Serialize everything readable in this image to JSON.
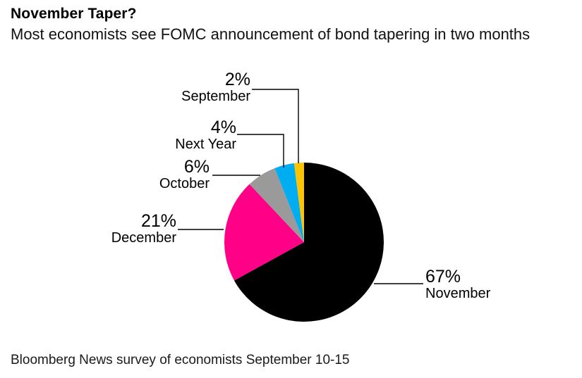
{
  "header": {
    "title": "November Taper?",
    "subtitle": "Most economists see FOMC announcement of bond tapering in two months"
  },
  "footer": {
    "source": "Bloomberg News survey of economists September 10-15"
  },
  "chart_data": {
    "type": "pie",
    "title": "November Taper?",
    "subtitle": "Most economists see FOMC announcement of bond tapering in two months",
    "source": "Bloomberg News survey of economists September 10-15",
    "unit": "percent",
    "start_angle_deg": 0,
    "direction": "clockwise",
    "legend": "none",
    "labels_placement": "outside-with-leader-lines",
    "slices": [
      {
        "label": "November",
        "value": 67,
        "pct_label": "67%",
        "color": "#000000"
      },
      {
        "label": "December",
        "value": 21,
        "pct_label": "21%",
        "color": "#FF0087"
      },
      {
        "label": "October",
        "value": 6,
        "pct_label": "6%",
        "color": "#9A9A9A"
      },
      {
        "label": "Next Year",
        "value": 4,
        "pct_label": "4%",
        "color": "#00ADF0"
      },
      {
        "label": "September",
        "value": 2,
        "pct_label": "2%",
        "color": "#FFC400"
      }
    ]
  }
}
